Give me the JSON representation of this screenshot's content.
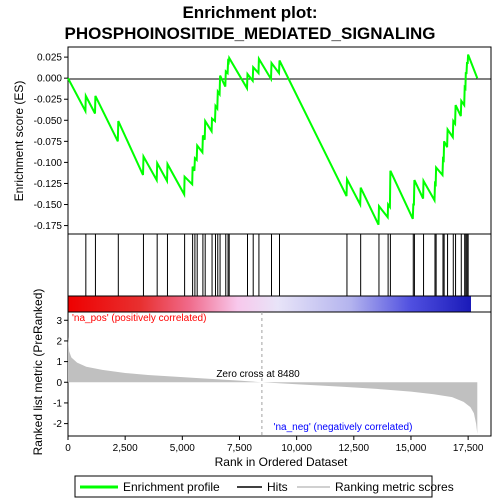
{
  "chart_data": {
    "type": "line",
    "title_line1": "Enrichment plot:",
    "title_line2": "PHOSPHOINOSITIDE_MEDIATED_SIGNALING",
    "es_ylabel": "Enrichment score (ES)",
    "metric_ylabel": "Ranked list metric (PreRanked)",
    "xlabel": "Rank in Ordered Dataset",
    "xlim": [
      0,
      18500
    ],
    "es_ylim": [
      -0.185,
      0.037
    ],
    "metric_ylim": [
      -2.6,
      3.4
    ],
    "x_ticks": [
      0,
      2500,
      5000,
      7500,
      10000,
      12500,
      15000,
      17500
    ],
    "x_tick_labels": [
      "0",
      "2,500",
      "5,000",
      "7,500",
      "10,000",
      "12,500",
      "15,000",
      "17,500"
    ],
    "es_ticks": [
      0.025,
      0.0,
      -0.025,
      -0.05,
      -0.075,
      -0.1,
      -0.125,
      -0.15,
      -0.175
    ],
    "es_tick_labels": [
      "0.025",
      "0.000",
      "-0.025",
      "-0.050",
      "-0.075",
      "-0.100",
      "-0.125",
      "-0.150",
      "-0.175"
    ],
    "metric_ticks": [
      3,
      2,
      1,
      0,
      -1,
      -2
    ],
    "metric_tick_labels": [
      "3",
      "2",
      "1",
      "0",
      "-1",
      "-2"
    ],
    "dataset_size": 17900,
    "zero_cross_rank": 8480,
    "zero_cross_label": "Zero cross at 8480",
    "pos_label": "'na_pos' (positively correlated)",
    "neg_label": "'na_neg' (negatively correlated)",
    "hits": [
      780,
      1200,
      2200,
      3300,
      3900,
      4350,
      5100,
      5450,
      5550,
      5650,
      5900,
      6000,
      6300,
      6450,
      6550,
      6650,
      6900,
      7000,
      7050,
      7850,
      8100,
      8350,
      8900,
      9250,
      12200,
      12800,
      13600,
      14000,
      14100,
      15100,
      15150,
      15550,
      16050,
      16100,
      16400,
      16450,
      16600,
      16850,
      16950,
      17200,
      17350,
      17400,
      17450,
      17500
    ],
    "es_profile": [
      [
        0,
        0.0
      ],
      [
        760,
        -0.039
      ],
      [
        780,
        -0.021
      ],
      [
        1180,
        -0.042
      ],
      [
        1200,
        -0.021
      ],
      [
        2180,
        -0.075
      ],
      [
        2200,
        -0.051
      ],
      [
        3280,
        -0.115
      ],
      [
        3300,
        -0.093
      ],
      [
        3880,
        -0.121
      ],
      [
        3900,
        -0.101
      ],
      [
        4330,
        -0.122
      ],
      [
        4350,
        -0.102
      ],
      [
        5080,
        -0.138
      ],
      [
        5100,
        -0.117
      ],
      [
        5430,
        -0.126
      ],
      [
        5450,
        -0.105
      ],
      [
        5530,
        -0.11
      ],
      [
        5550,
        -0.095
      ],
      [
        5630,
        -0.097
      ],
      [
        5650,
        -0.08
      ],
      [
        5880,
        -0.088
      ],
      [
        5900,
        -0.068
      ],
      [
        5980,
        -0.073
      ],
      [
        6000,
        -0.051
      ],
      [
        6280,
        -0.063
      ],
      [
        6300,
        -0.048
      ],
      [
        6430,
        -0.051
      ],
      [
        6450,
        -0.033
      ],
      [
        6530,
        -0.036
      ],
      [
        6550,
        -0.016
      ],
      [
        6630,
        -0.019
      ],
      [
        6650,
        0.003
      ],
      [
        6880,
        -0.01
      ],
      [
        6900,
        0.008
      ],
      [
        6980,
        0.006
      ],
      [
        7000,
        0.02
      ],
      [
        7030,
        0.019
      ],
      [
        7050,
        0.024
      ],
      [
        7830,
        -0.012
      ],
      [
        7850,
        0.005
      ],
      [
        8080,
        -0.003
      ],
      [
        8100,
        0.013
      ],
      [
        8330,
        0.006
      ],
      [
        8350,
        0.023
      ],
      [
        8880,
        -0.001
      ],
      [
        8900,
        0.018
      ],
      [
        9230,
        0.006
      ],
      [
        9250,
        0.021
      ],
      [
        12180,
        -0.14
      ],
      [
        12200,
        -0.12
      ],
      [
        12780,
        -0.15
      ],
      [
        12800,
        -0.13
      ],
      [
        13580,
        -0.174
      ],
      [
        13600,
        -0.152
      ],
      [
        13980,
        -0.165
      ],
      [
        14000,
        -0.15
      ],
      [
        14080,
        -0.153
      ],
      [
        14100,
        -0.11
      ],
      [
        15080,
        -0.167
      ],
      [
        15100,
        -0.15
      ],
      [
        15130,
        -0.15
      ],
      [
        15150,
        -0.121
      ],
      [
        15530,
        -0.143
      ],
      [
        15550,
        -0.122
      ],
      [
        16030,
        -0.145
      ],
      [
        16050,
        -0.125
      ],
      [
        16080,
        -0.126
      ],
      [
        16100,
        -0.106
      ],
      [
        16380,
        -0.115
      ],
      [
        16400,
        -0.096
      ],
      [
        16430,
        -0.097
      ],
      [
        16450,
        -0.075
      ],
      [
        16580,
        -0.082
      ],
      [
        16600,
        -0.061
      ],
      [
        16830,
        -0.07
      ],
      [
        16850,
        -0.051
      ],
      [
        16930,
        -0.054
      ],
      [
        16950,
        -0.032
      ],
      [
        17180,
        -0.045
      ],
      [
        17200,
        -0.027
      ],
      [
        17330,
        -0.032
      ],
      [
        17350,
        -0.011
      ],
      [
        17380,
        -0.012
      ],
      [
        17400,
        0.006
      ],
      [
        17430,
        0.006
      ],
      [
        17450,
        0.018
      ],
      [
        17480,
        0.018
      ],
      [
        17500,
        0.028
      ],
      [
        17900,
        0.0
      ]
    ],
    "metric_profile": [
      [
        0,
        2.2
      ],
      [
        50,
        1.5
      ],
      [
        150,
        1.2
      ],
      [
        400,
        0.95
      ],
      [
        800,
        0.75
      ],
      [
        1500,
        0.6
      ],
      [
        2500,
        0.45
      ],
      [
        3500,
        0.35
      ],
      [
        5000,
        0.25
      ],
      [
        6500,
        0.15
      ],
      [
        7500,
        0.08
      ],
      [
        8480,
        0.0
      ],
      [
        10000,
        -0.1
      ],
      [
        12000,
        -0.22
      ],
      [
        13500,
        -0.32
      ],
      [
        15000,
        -0.45
      ],
      [
        16000,
        -0.58
      ],
      [
        16800,
        -0.72
      ],
      [
        17300,
        -0.95
      ],
      [
        17600,
        -1.2
      ],
      [
        17750,
        -1.5
      ],
      [
        17850,
        -2.0
      ],
      [
        17900,
        -2.5
      ]
    ],
    "colors": {
      "es_line": "#00ff00",
      "hit": "#000000",
      "metric_fill": "#c0c0c0",
      "zero_line": "#808080",
      "pos_text": "#ff0000",
      "neg_text": "#0000ff",
      "gradient": [
        "#ee0000",
        "#f06060",
        "#f4a0c8",
        "#f8d0f0",
        "#e0e0f8",
        "#b0b0f0",
        "#4040e0",
        "#2020c0"
      ]
    }
  },
  "legend": {
    "items": [
      {
        "label": "Enrichment profile",
        "color": "#00ff00",
        "kind": "line"
      },
      {
        "label": "Hits",
        "color": "#000000",
        "kind": "line"
      },
      {
        "label": "Ranking metric scores",
        "color": "#c0c0c0",
        "kind": "line"
      }
    ]
  }
}
